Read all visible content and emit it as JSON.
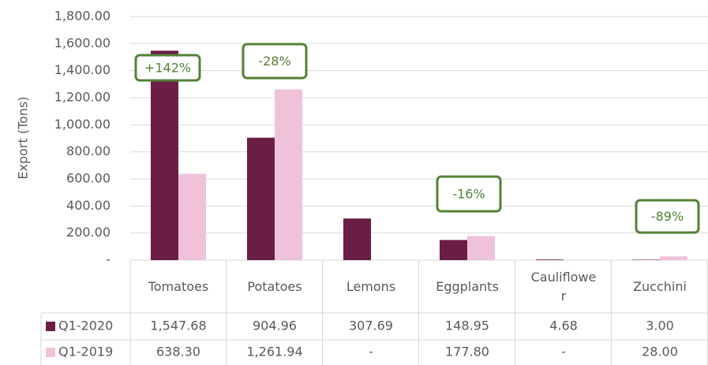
{
  "chart_data": {
    "type": "bar",
    "y_label": "Export (Tons)",
    "categories": [
      "Tomatoes",
      "Potatoes",
      "Lemons",
      "Eggplants",
      "Cauliflower",
      "Zucchini"
    ],
    "series": [
      {
        "name": "Q1-2020",
        "color": "#6b1d45",
        "values": [
          1547.68,
          904.96,
          307.69,
          148.95,
          4.68,
          3.0
        ],
        "value_labels": [
          "1,547.68",
          "904.96",
          "307.69",
          "148.95",
          "4.68",
          "3.00"
        ]
      },
      {
        "name": "Q1-2019",
        "color": "#f0c2da",
        "values": [
          638.3,
          1261.94,
          0,
          177.8,
          0,
          28.0
        ],
        "value_labels": [
          "638.30",
          "1,261.94",
          "-",
          "177.80",
          "-",
          "28.00"
        ]
      }
    ],
    "ylim": [
      0,
      1800
    ],
    "yticks": [
      {
        "value": 0,
        "label": "-"
      },
      {
        "value": 200,
        "label": "200.00"
      },
      {
        "value": 400,
        "label": "400.00"
      },
      {
        "value": 600,
        "label": "600.00"
      },
      {
        "value": 800,
        "label": "800.00"
      },
      {
        "value": 1000,
        "label": "1,000.00"
      },
      {
        "value": 1200,
        "label": "1,200.00"
      },
      {
        "value": 1400,
        "label": "1,400.00"
      },
      {
        "value": 1600,
        "label": "1,600.00"
      },
      {
        "value": 1800,
        "label": "1,800.00"
      }
    ],
    "grid": true,
    "annotations": [
      "+142%",
      "-28%",
      "-16%",
      "-89%"
    ]
  }
}
